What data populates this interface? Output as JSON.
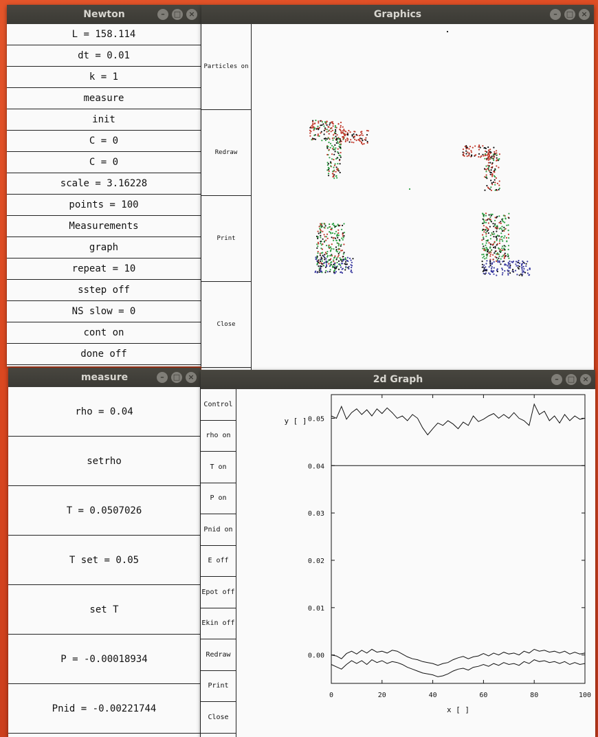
{
  "windows": {
    "newton": {
      "title": "Newton",
      "items": [
        "L = 158.114",
        "dt = 0.01",
        "k = 1",
        "measure",
        "init",
        "C = 0",
        "C = 0",
        "scale = 3.16228",
        "points = 100",
        "Measurements",
        "graph",
        "repeat = 10",
        "sstep off",
        "NS slow = 0",
        "cont on",
        "done off"
      ]
    },
    "graphics": {
      "title": "Graphics",
      "buttons": [
        "Particles on",
        "Redraw",
        "Print",
        "Close"
      ]
    },
    "measure": {
      "title": "measure",
      "items": [
        "rho = 0.04",
        "setrho",
        "T = 0.0507026",
        "T set = 0.05",
        "set T",
        "P = -0.00018934",
        "Pnid = -0.00221744"
      ]
    },
    "graph2d": {
      "title": "2d Graph",
      "buttons": [
        "Control",
        "rho on",
        "T on",
        "P on",
        "Pnid on",
        "E off",
        "Epot off",
        "Ekin off",
        "Redraw",
        "Print",
        "Close"
      ]
    }
  },
  "window_controls": {
    "minimize": "–",
    "maximize": "□",
    "close": "×"
  },
  "colors": {
    "particle_red": "#c0392b",
    "particle_green": "#2ea043",
    "particle_blue": "#3a3aa0",
    "particle_black": "#111111"
  },
  "chart_data": {
    "type": "line",
    "title": "",
    "xlabel": "x [ ]",
    "ylabel": "y [ ]",
    "xlim": [
      0,
      100
    ],
    "ylim": [
      -0.006,
      0.055
    ],
    "x_ticks": [
      0,
      20,
      40,
      60,
      80,
      100
    ],
    "x_tick_labels": [
      "0",
      "20",
      "40",
      "60",
      "80",
      "100"
    ],
    "y_ticks": [
      0.0,
      0.01,
      0.02,
      0.03,
      0.04,
      0.05
    ],
    "y_tick_labels": [
      "0.00",
      "0.01",
      "0.02",
      "0.03",
      "0.04",
      "0.05"
    ],
    "series": [
      {
        "name": "T",
        "x": [
          0,
          2,
          4,
          6,
          8,
          10,
          12,
          14,
          16,
          18,
          20,
          22,
          24,
          26,
          28,
          30,
          32,
          34,
          36,
          38,
          40,
          42,
          44,
          46,
          48,
          50,
          52,
          54,
          56,
          58,
          60,
          62,
          64,
          66,
          68,
          70,
          72,
          74,
          76,
          78,
          80,
          82,
          84,
          86,
          88,
          90,
          92,
          94,
          96,
          98,
          100
        ],
        "values": [
          0.0505,
          0.05,
          0.0525,
          0.0498,
          0.0512,
          0.052,
          0.0508,
          0.0518,
          0.0505,
          0.052,
          0.051,
          0.0522,
          0.0512,
          0.05,
          0.0505,
          0.0495,
          0.0508,
          0.05,
          0.048,
          0.0465,
          0.0478,
          0.049,
          0.0485,
          0.0495,
          0.0488,
          0.0478,
          0.0492,
          0.0485,
          0.0505,
          0.0493,
          0.0498,
          0.0505,
          0.051,
          0.05,
          0.0508,
          0.05,
          0.0512,
          0.05,
          0.0495,
          0.0485,
          0.053,
          0.0508,
          0.0515,
          0.0495,
          0.0505,
          0.049,
          0.0508,
          0.0495,
          0.0505,
          0.0498,
          0.05
        ]
      },
      {
        "name": "rho",
        "x": [
          0,
          100
        ],
        "values": [
          0.04,
          0.04
        ]
      },
      {
        "name": "P",
        "x": [
          0,
          2,
          4,
          6,
          8,
          10,
          12,
          14,
          16,
          18,
          20,
          22,
          24,
          26,
          28,
          30,
          32,
          34,
          36,
          38,
          40,
          42,
          44,
          46,
          48,
          50,
          52,
          54,
          56,
          58,
          60,
          62,
          64,
          66,
          68,
          70,
          72,
          74,
          76,
          78,
          80,
          82,
          84,
          86,
          88,
          90,
          92,
          94,
          96,
          98,
          100
        ],
        "values": [
          0.0,
          -0.0002,
          -0.0008,
          0.0003,
          0.0008,
          0.0002,
          0.001,
          0.0004,
          0.0012,
          0.0006,
          0.0008,
          0.0004,
          0.001,
          0.0008,
          0.0002,
          -0.0004,
          -0.0008,
          -0.001,
          -0.0014,
          -0.0016,
          -0.0018,
          -0.0022,
          -0.0018,
          -0.0016,
          -0.001,
          -0.0006,
          -0.0003,
          -0.0008,
          -0.0004,
          -0.0002,
          0.0003,
          -0.0002,
          0.0004,
          0.0,
          0.0006,
          0.0002,
          0.0004,
          0.0,
          0.0008,
          0.0004,
          0.0012,
          0.0008,
          0.001,
          0.0006,
          0.0008,
          0.0004,
          0.0008,
          0.0002,
          0.0006,
          0.0002,
          0.0004
        ]
      },
      {
        "name": "Pnid",
        "x": [
          0,
          2,
          4,
          6,
          8,
          10,
          12,
          14,
          16,
          18,
          20,
          22,
          24,
          26,
          28,
          30,
          32,
          34,
          36,
          38,
          40,
          42,
          44,
          46,
          48,
          50,
          52,
          54,
          56,
          58,
          60,
          62,
          64,
          66,
          68,
          70,
          72,
          74,
          76,
          78,
          80,
          82,
          84,
          86,
          88,
          90,
          92,
          94,
          96,
          98,
          100
        ],
        "values": [
          -0.002,
          -0.0025,
          -0.003,
          -0.002,
          -0.0012,
          -0.0018,
          -0.0012,
          -0.002,
          -0.001,
          -0.0016,
          -0.0012,
          -0.0018,
          -0.0014,
          -0.0016,
          -0.002,
          -0.0026,
          -0.003,
          -0.0034,
          -0.0038,
          -0.004,
          -0.0042,
          -0.0046,
          -0.0044,
          -0.004,
          -0.0034,
          -0.003,
          -0.0028,
          -0.0032,
          -0.0026,
          -0.0024,
          -0.002,
          -0.0024,
          -0.0018,
          -0.0022,
          -0.0016,
          -0.002,
          -0.0018,
          -0.0022,
          -0.0014,
          -0.0018,
          -0.001,
          -0.0014,
          -0.0012,
          -0.0016,
          -0.0014,
          -0.0018,
          -0.0014,
          -0.002,
          -0.0016,
          -0.002,
          -0.0018
        ]
      }
    ]
  }
}
